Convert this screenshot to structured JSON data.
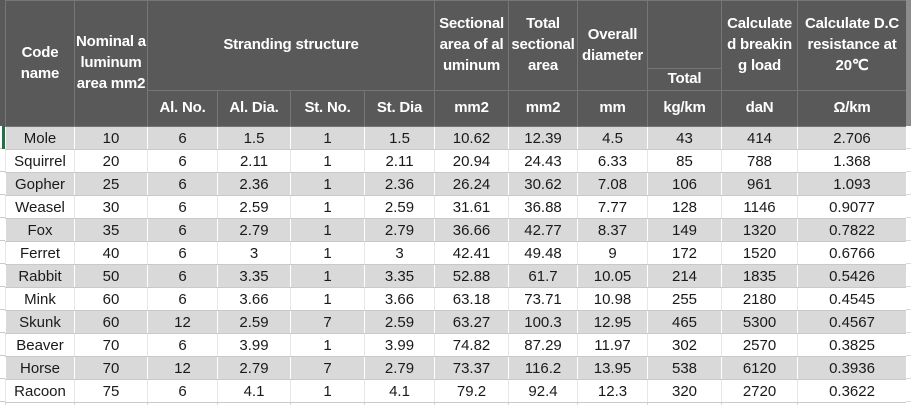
{
  "colors": {
    "header_bg": "#595959",
    "header_text": "#ffffff",
    "band_row_bg": "#d9d9d9",
    "plain_row_bg": "#ffffff",
    "grid_line": "#c9c9c9",
    "selection_green": "#217346"
  },
  "table": {
    "headers": {
      "code_name": "Code name",
      "nominal_aluminum_area": "Nominal aluminum area mm2",
      "stranding_structure": "Stranding structure",
      "stranding_sub": [
        "Al. No.",
        "Al. Dia.",
        "St. No.",
        "St. Dia"
      ],
      "sectional_area_aluminum": "Sectional area of aluminum",
      "total_sectional_area": "Total sectional area",
      "overall_diameter": "Overall diameter",
      "total_weight": "Total",
      "calculated_breaking_load": "Calculated breaking load",
      "dc_resistance": "Calculate D.C resistance at 20℃",
      "empty": ""
    },
    "units": [
      "mm2",
      "mm2",
      "mm",
      "kg/km",
      "daN",
      "Ω/km"
    ],
    "rows": [
      [
        "Mole",
        "10",
        "6",
        "1.5",
        "1",
        "1.5",
        "10.62",
        "12.39",
        "4.5",
        "43",
        "414",
        "2.706"
      ],
      [
        "Squirrel",
        "20",
        "6",
        "2.11",
        "1",
        "2.11",
        "20.94",
        "24.43",
        "6.33",
        "85",
        "788",
        "1.368"
      ],
      [
        "Gopher",
        "25",
        "6",
        "2.36",
        "1",
        "2.36",
        "26.24",
        "30.62",
        "7.08",
        "106",
        "961",
        "1.093"
      ],
      [
        "Weasel",
        "30",
        "6",
        "2.59",
        "1",
        "2.59",
        "31.61",
        "36.88",
        "7.77",
        "128",
        "1146",
        "0.9077"
      ],
      [
        "Fox",
        "35",
        "6",
        "2.79",
        "1",
        "2.79",
        "36.66",
        "42.77",
        "8.37",
        "149",
        "1320",
        "0.7822"
      ],
      [
        "Ferret",
        "40",
        "6",
        "3",
        "1",
        "3",
        "42.41",
        "49.48",
        "9",
        "172",
        "1520",
        "0.6766"
      ],
      [
        "Rabbit",
        "50",
        "6",
        "3.35",
        "1",
        "3.35",
        "52.88",
        "61.7",
        "10.05",
        "214",
        "1835",
        "0.5426"
      ],
      [
        "Mink",
        "60",
        "6",
        "3.66",
        "1",
        "3.66",
        "63.18",
        "73.71",
        "10.98",
        "255",
        "2180",
        "0.4545"
      ],
      [
        "Skunk",
        "60",
        "12",
        "2.59",
        "7",
        "2.59",
        "63.27",
        "100.3",
        "12.95",
        "465",
        "5300",
        "0.4567"
      ],
      [
        "Beaver",
        "70",
        "6",
        "3.99",
        "1",
        "3.99",
        "74.82",
        "87.29",
        "11.97",
        "302",
        "2570",
        "0.3825"
      ],
      [
        "Horse",
        "70",
        "12",
        "2.79",
        "7",
        "2.79",
        "73.37",
        "116.2",
        "13.95",
        "538",
        "6120",
        "0.3936"
      ],
      [
        "Racoon",
        "75",
        "6",
        "4.1",
        "1",
        "4.1",
        "79.2",
        "92.4",
        "12.3",
        "320",
        "2720",
        "0.3622"
      ]
    ]
  }
}
